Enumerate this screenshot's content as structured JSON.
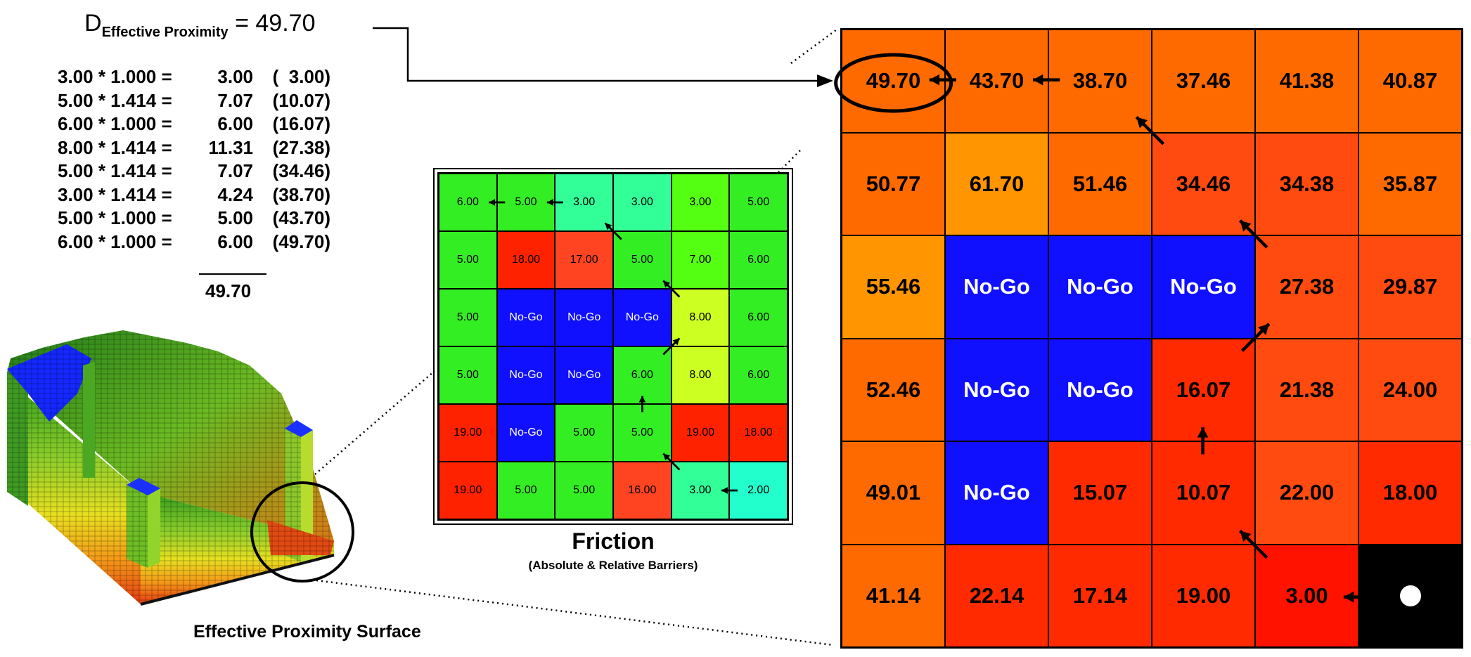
{
  "colors": {
    "orange": "#ff6a00",
    "orange_light": "#ff9500",
    "red_orange": "#ff4a10",
    "red": "#ff2a00",
    "red_deep": "#ff1200",
    "blue": "#1010ff",
    "black": "#000000",
    "green": "#33ee22",
    "green_bright": "#55ff11",
    "lime": "#ccff22",
    "mint": "#33ff99",
    "cyan": "#22ffcc",
    "f_red": "#ff2200",
    "f_red_orange": "#ff4422"
  },
  "header": {
    "d_label": "D",
    "d_subscript": "Effective Proximity",
    "d_equals": "= 49.70"
  },
  "calculation": {
    "rows": [
      {
        "expr": "3.00 * 1.000 =",
        "value": "3.00",
        "cumulative": "(  3.00)"
      },
      {
        "expr": "5.00 * 1.414 =",
        "value": "7.07",
        "cumulative": "(10.07)"
      },
      {
        "expr": "6.00 * 1.000 =",
        "value": "6.00",
        "cumulative": "(16.07)"
      },
      {
        "expr": "8.00 * 1.414 =",
        "value": "11.31",
        "cumulative": "(27.38)"
      },
      {
        "expr": "5.00 * 1.414 =",
        "value": "7.07",
        "cumulative": "(34.46)"
      },
      {
        "expr": "3.00 * 1.414 =",
        "value": "4.24",
        "cumulative": "(38.70)"
      },
      {
        "expr": "5.00 * 1.000 =",
        "value": "5.00",
        "cumulative": "(43.70)"
      },
      {
        "expr": "6.00 * 1.000 =",
        "value": "6.00",
        "cumulative": "(49.70)"
      }
    ],
    "total": "49.70"
  },
  "proximity_grid": [
    [
      {
        "t": "49.70",
        "c": "orange"
      },
      {
        "t": "43.70",
        "c": "orange"
      },
      {
        "t": "38.70",
        "c": "orange"
      },
      {
        "t": "37.46",
        "c": "orange"
      },
      {
        "t": "41.38",
        "c": "orange"
      },
      {
        "t": "40.87",
        "c": "orange"
      }
    ],
    [
      {
        "t": "50.77",
        "c": "orange"
      },
      {
        "t": "61.70",
        "c": "orange_light"
      },
      {
        "t": "51.46",
        "c": "orange"
      },
      {
        "t": "34.46",
        "c": "red_orange"
      },
      {
        "t": "34.38",
        "c": "red_orange"
      },
      {
        "t": "35.87",
        "c": "orange"
      }
    ],
    [
      {
        "t": "55.46",
        "c": "orange_light"
      },
      {
        "t": "No-Go",
        "c": "blue"
      },
      {
        "t": "No-Go",
        "c": "blue"
      },
      {
        "t": "No-Go",
        "c": "blue"
      },
      {
        "t": "27.38",
        "c": "red_orange"
      },
      {
        "t": "29.87",
        "c": "red_orange"
      }
    ],
    [
      {
        "t": "52.46",
        "c": "orange"
      },
      {
        "t": "No-Go",
        "c": "blue"
      },
      {
        "t": "No-Go",
        "c": "blue"
      },
      {
        "t": "16.07",
        "c": "red"
      },
      {
        "t": "21.38",
        "c": "red_orange"
      },
      {
        "t": "24.00",
        "c": "red_orange"
      }
    ],
    [
      {
        "t": "49.01",
        "c": "orange"
      },
      {
        "t": "No-Go",
        "c": "blue"
      },
      {
        "t": "15.07",
        "c": "red"
      },
      {
        "t": "10.07",
        "c": "red"
      },
      {
        "t": "22.00",
        "c": "red_orange"
      },
      {
        "t": "18.00",
        "c": "red"
      }
    ],
    [
      {
        "t": "41.14",
        "c": "orange"
      },
      {
        "t": "22.14",
        "c": "red"
      },
      {
        "t": "17.14",
        "c": "red"
      },
      {
        "t": "19.00",
        "c": "red"
      },
      {
        "t": "3.00",
        "c": "red_deep"
      },
      {
        "t": "",
        "c": "black"
      }
    ]
  ],
  "friction_grid": [
    [
      {
        "t": "6.00",
        "c": "green"
      },
      {
        "t": "5.00",
        "c": "green"
      },
      {
        "t": "3.00",
        "c": "mint"
      },
      {
        "t": "3.00",
        "c": "mint"
      },
      {
        "t": "3.00",
        "c": "green_bright"
      },
      {
        "t": "5.00",
        "c": "green"
      }
    ],
    [
      {
        "t": "5.00",
        "c": "green"
      },
      {
        "t": "18.00",
        "c": "f_red"
      },
      {
        "t": "17.00",
        "c": "f_red_orange"
      },
      {
        "t": "5.00",
        "c": "green"
      },
      {
        "t": "7.00",
        "c": "green_bright"
      },
      {
        "t": "6.00",
        "c": "green"
      }
    ],
    [
      {
        "t": "5.00",
        "c": "green"
      },
      {
        "t": "No-Go",
        "c": "blue"
      },
      {
        "t": "No-Go",
        "c": "blue"
      },
      {
        "t": "No-Go",
        "c": "blue"
      },
      {
        "t": "8.00",
        "c": "lime"
      },
      {
        "t": "6.00",
        "c": "green"
      }
    ],
    [
      {
        "t": "5.00",
        "c": "green"
      },
      {
        "t": "No-Go",
        "c": "blue"
      },
      {
        "t": "No-Go",
        "c": "blue"
      },
      {
        "t": "6.00",
        "c": "green"
      },
      {
        "t": "8.00",
        "c": "lime"
      },
      {
        "t": "6.00",
        "c": "green"
      }
    ],
    [
      {
        "t": "19.00",
        "c": "f_red"
      },
      {
        "t": "No-Go",
        "c": "blue"
      },
      {
        "t": "5.00",
        "c": "green"
      },
      {
        "t": "5.00",
        "c": "green"
      },
      {
        "t": "19.00",
        "c": "f_red"
      },
      {
        "t": "18.00",
        "c": "f_red"
      }
    ],
    [
      {
        "t": "19.00",
        "c": "f_red"
      },
      {
        "t": "5.00",
        "c": "green"
      },
      {
        "t": "5.00",
        "c": "green"
      },
      {
        "t": "16.00",
        "c": "f_red_orange"
      },
      {
        "t": "3.00",
        "c": "mint"
      },
      {
        "t": "2.00",
        "c": "cyan"
      }
    ]
  ],
  "labels": {
    "friction_title": "Friction",
    "friction_subtitle": "(Absolute & Relative Barriers)",
    "surface_label": "Effective Proximity Surface"
  }
}
